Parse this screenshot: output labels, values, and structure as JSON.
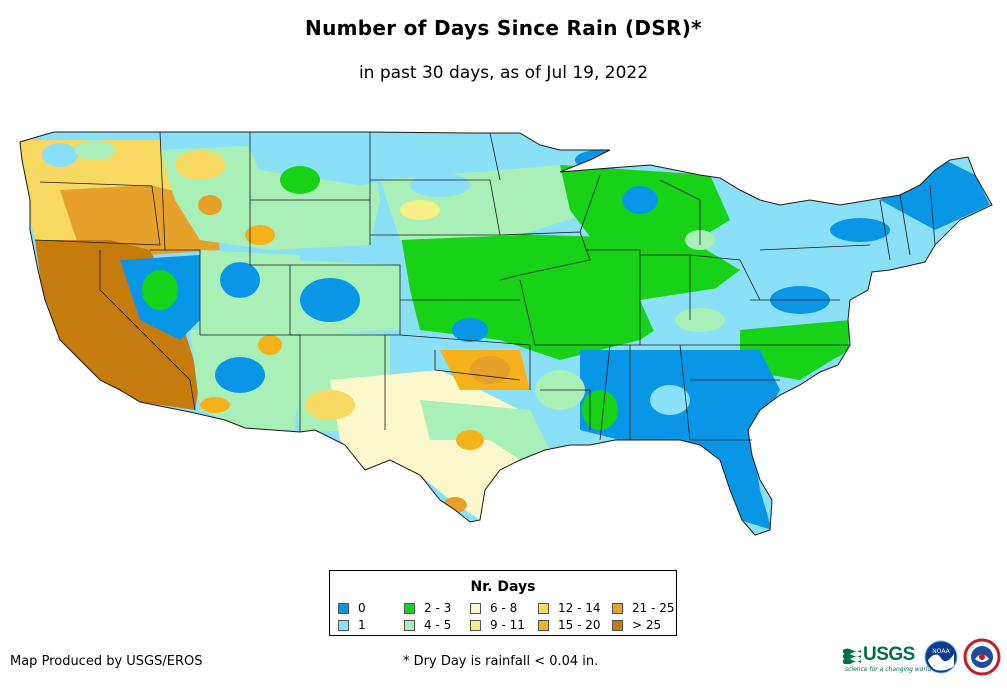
{
  "header": {
    "title": "Number of Days Since Rain (DSR)*",
    "subtitle": "in past 30 days, as of Jul 19, 2022"
  },
  "legend": {
    "title": "Nr. Days",
    "items": [
      {
        "label": "0",
        "color": "#0a96e6"
      },
      {
        "label": "1",
        "color": "#8ae0f7"
      },
      {
        "label": "2 - 3",
        "color": "#18d218"
      },
      {
        "label": "4 - 5",
        "color": "#a8f0b8"
      },
      {
        "label": "6 - 8",
        "color": "#fbf9cc"
      },
      {
        "label": "9 - 11",
        "color": "#f6ee86"
      },
      {
        "label": "12 - 14",
        "color": "#f7d860"
      },
      {
        "label": "15 - 20",
        "color": "#f6b21a"
      },
      {
        "label": "21 - 25",
        "color": "#e6a12a"
      },
      {
        "label": "> 25",
        "color": "#c57c0c"
      }
    ]
  },
  "footer": {
    "credit": "Map Produced by USGS/EROS",
    "footnote": "* Dry Day is rainfall < 0.04 in."
  },
  "logos": {
    "usgs_text": "USGS",
    "usgs_tagline": "science for a changing world",
    "noaa_text": "NOAA",
    "nws_icon": "nws-icon"
  }
}
